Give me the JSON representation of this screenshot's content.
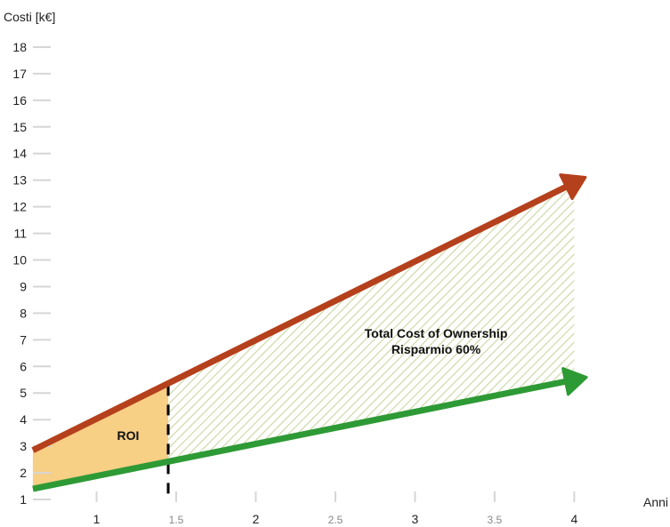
{
  "chart_data": {
    "type": "line",
    "ylabel": "Costi [k€]",
    "xlabel": "Anni",
    "ylim": [
      0.6,
      18.6
    ],
    "xlim": [
      0.55,
      4.35
    ],
    "y_ticks": [
      1,
      2,
      3,
      4,
      5,
      6,
      7,
      8,
      9,
      10,
      11,
      12,
      13,
      14,
      15,
      16,
      17,
      18
    ],
    "x_ticks_major": [
      1,
      2,
      3,
      4
    ],
    "x_ticks_minor": [
      1.5,
      2.5,
      3.5
    ],
    "x_tick_labels_major": [
      "1",
      "2",
      "3",
      "4"
    ],
    "x_tick_labels_minor": [
      "1.5",
      "2.5",
      "3.5"
    ],
    "grid": false,
    "series": [
      {
        "color": "#b5401c",
        "points": [
          [
            0.6,
            2.85
          ],
          [
            4.0,
            12.9
          ]
        ]
      },
      {
        "color": "#2e9a35",
        "points": [
          [
            0.6,
            1.4
          ],
          [
            4.0,
            5.5
          ]
        ]
      }
    ],
    "breakeven_x": 1.45,
    "regions": [
      {
        "label": "ROI",
        "color": "#f7cf85",
        "x_range": [
          0.6,
          1.45
        ]
      },
      {
        "label": "Total Cost of Ownership",
        "color": "#c8d4a0",
        "x_range": [
          1.45,
          4.0
        ]
      }
    ],
    "annotations": {
      "roi": "ROI",
      "tco_line1": "Total Cost of Ownership",
      "tco_line2": "Risparmio 60%"
    }
  }
}
